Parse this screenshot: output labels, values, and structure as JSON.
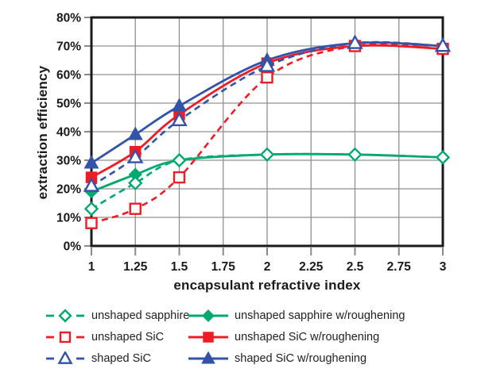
{
  "chart_data": {
    "type": "line",
    "title": "",
    "xlabel": "encapsulant refractive index",
    "ylabel": "extraction efficiency",
    "xlim": [
      1,
      3
    ],
    "ylim": [
      0,
      80
    ],
    "grid": true,
    "legend_position": "bottom",
    "xticks": [
      1,
      1.25,
      1.5,
      1.75,
      2,
      2.25,
      2.5,
      2.75,
      3
    ],
    "xtick_labels": [
      "1",
      "1.25",
      "1.5",
      "1.75",
      "2",
      "2.25",
      "2.5",
      "2.75",
      "3"
    ],
    "yticks": [
      0,
      10,
      20,
      30,
      40,
      50,
      60,
      70,
      80
    ],
    "ytick_labels": [
      "0%",
      "10%",
      "20%",
      "30%",
      "40%",
      "50%",
      "60%",
      "70%",
      "80%"
    ],
    "x": [
      1,
      1.25,
      1.5,
      2,
      2.5,
      3
    ],
    "series": [
      {
        "name": "unshaped sapphire",
        "color": "#00A96E",
        "line_style": "dashed",
        "marker": "diamond",
        "marker_fill": "open",
        "values": [
          13,
          22,
          30,
          32,
          32,
          31
        ]
      },
      {
        "name": "unshaped sapphire w/roughening",
        "color": "#00A96E",
        "line_style": "solid",
        "marker": "diamond",
        "marker_fill": "filled",
        "values": [
          19,
          25,
          30,
          32,
          32,
          31
        ]
      },
      {
        "name": "unshaped SiC",
        "color": "#EE1C25",
        "line_style": "dashed",
        "marker": "square",
        "marker_fill": "open",
        "values": [
          8,
          13,
          24,
          59,
          70,
          69
        ]
      },
      {
        "name": "unshaped SiC w/roughening",
        "color": "#EE1C25",
        "line_style": "solid",
        "marker": "square",
        "marker_fill": "filled",
        "values": [
          24,
          33,
          46,
          64,
          70,
          69
        ]
      },
      {
        "name": "shaped SiC",
        "color": "#3353A8",
        "line_style": "dashed",
        "marker": "triangle",
        "marker_fill": "open",
        "values": [
          21,
          31,
          44,
          63,
          71,
          70
        ]
      },
      {
        "name": "shaped SiC w/roughening",
        "color": "#3353A8",
        "line_style": "solid",
        "marker": "triangle",
        "marker_fill": "filled",
        "values": [
          29,
          39,
          49,
          65,
          71,
          70
        ]
      }
    ],
    "colors": {
      "frame": "#1a1a1a",
      "grid": "#909090",
      "tick": "#8a8a8a",
      "text": "#1a1a1a",
      "background": "#ffffff"
    }
  }
}
